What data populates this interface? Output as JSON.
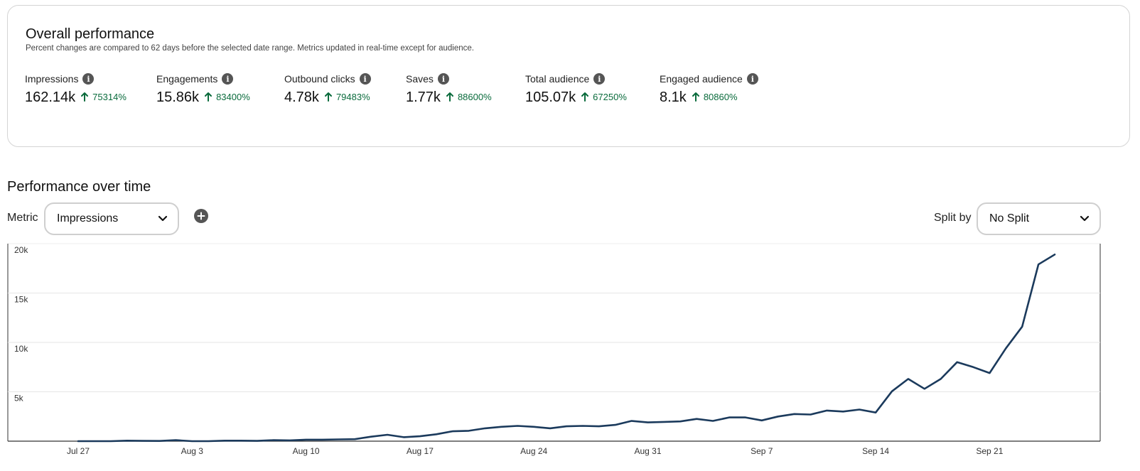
{
  "overall": {
    "title": "Overall performance",
    "subtitle": "Percent changes are compared to 62 days before the selected date range. Metrics updated in real-time except for audience.",
    "metrics": [
      {
        "label": "Impressions",
        "value": "162.14k",
        "change": "75314%"
      },
      {
        "label": "Engagements",
        "value": "15.86k",
        "change": "83400%"
      },
      {
        "label": "Outbound clicks",
        "value": "4.78k",
        "change": "79483%"
      },
      {
        "label": "Saves",
        "value": "1.77k",
        "change": "88600%"
      },
      {
        "label": "Total audience",
        "value": "105.07k",
        "change": "67250%"
      },
      {
        "label": "Engaged audience",
        "value": "8.1k",
        "change": "80860%"
      }
    ],
    "positive_color": "#0a6b3c",
    "info_icon": "info-icon",
    "up_icon": "arrow-up-icon"
  },
  "performance": {
    "title": "Performance over time",
    "metric_label": "Metric",
    "metric_value": "Impressions",
    "split_label": "Split by",
    "split_value": "No Split",
    "add_icon": "plus-circle-icon",
    "dropdown_icon": "chevron-down-icon"
  },
  "chart_data": {
    "type": "line",
    "title": "",
    "xlabel": "",
    "ylabel": "",
    "ylim": [
      0,
      20000
    ],
    "y_ticks": [
      {
        "value": 5000,
        "label": "5k"
      },
      {
        "value": 10000,
        "label": "10k"
      },
      {
        "value": 15000,
        "label": "15k"
      },
      {
        "value": 20000,
        "label": "20k"
      }
    ],
    "x_tick_labels": [
      "Jul 27",
      "Aug 3",
      "Aug 10",
      "Aug 17",
      "Aug 24",
      "Aug 31",
      "Sep 7",
      "Sep 14",
      "Sep 21"
    ],
    "x_tick_step_days": 7,
    "grid": "horizontal",
    "line_color": "#1b3a5c",
    "series": [
      {
        "values": [
          0,
          0,
          0,
          50,
          30,
          20,
          100,
          0,
          0,
          50,
          50,
          30,
          100,
          80,
          150,
          150,
          180,
          200,
          450,
          650,
          400,
          500,
          700,
          1000,
          1050,
          1300,
          1450,
          1550,
          1450,
          1300,
          1500,
          1550,
          1500,
          1650,
          2050,
          1900,
          1950,
          2000,
          2250,
          2050,
          2400,
          2400,
          2100,
          2500,
          2750,
          2700,
          3100,
          3000,
          3200,
          2900,
          5050,
          6300,
          5300,
          6300,
          8000,
          7500,
          6900,
          9400,
          11600,
          17900,
          18900
        ]
      }
    ]
  }
}
